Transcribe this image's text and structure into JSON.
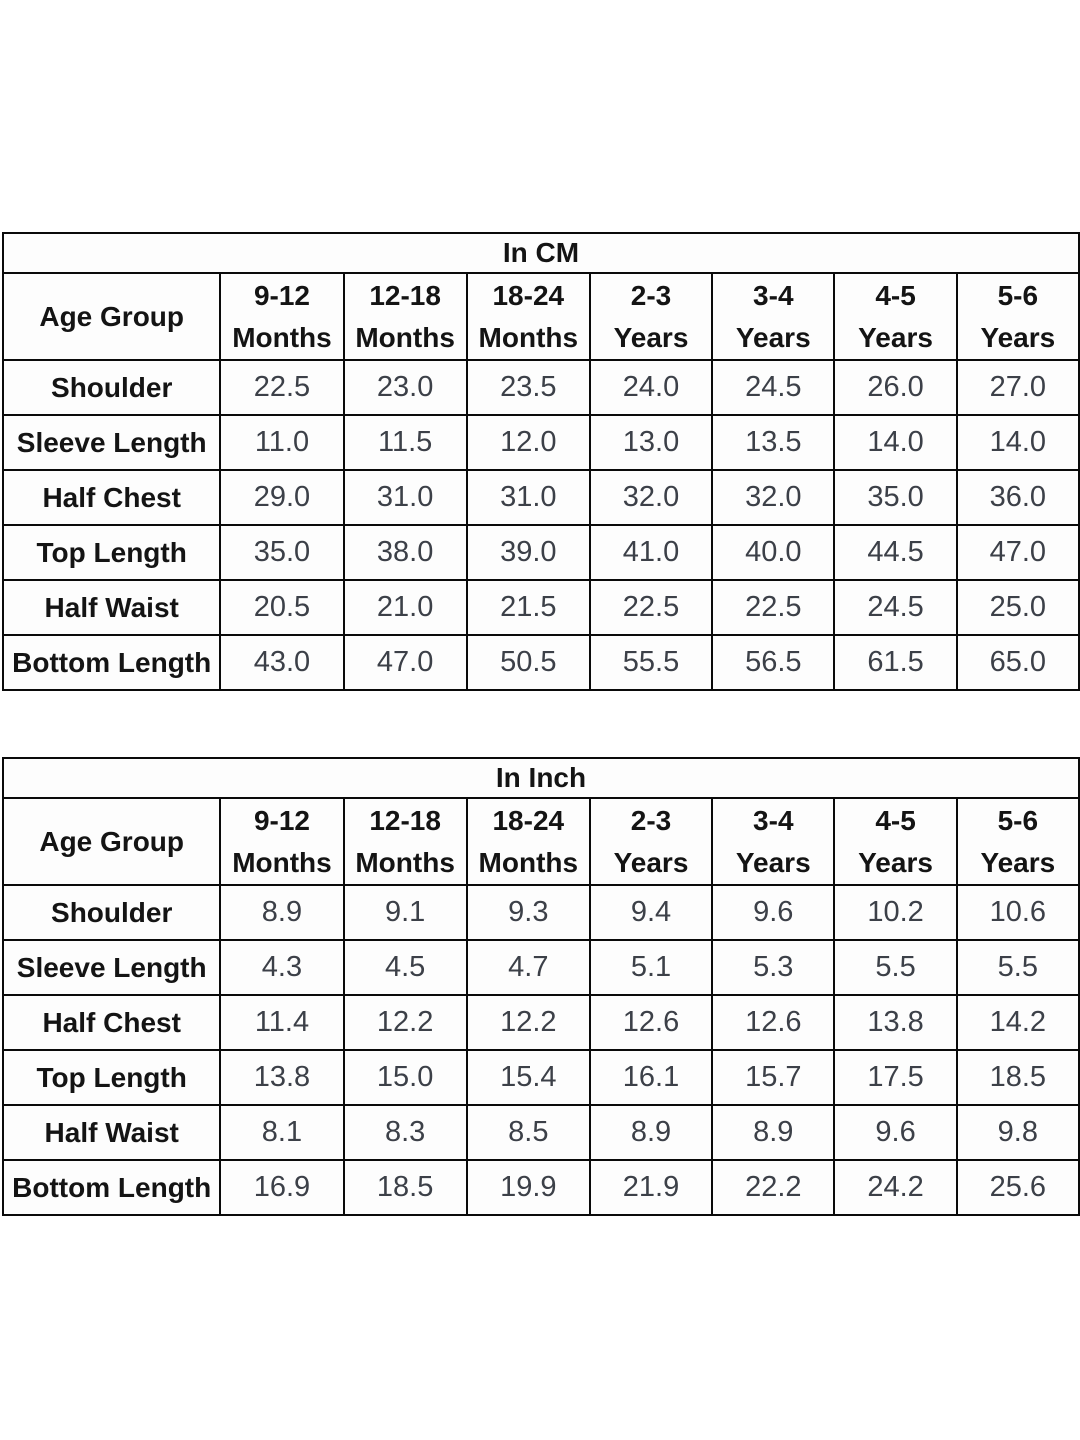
{
  "page": {
    "background_color": "#ffffff",
    "border_color": "#0a0a0a",
    "label_color": "#141414",
    "value_color": "#3c4048",
    "cell_background": "#fdfdfd"
  },
  "chart_data": [
    {
      "type": "table",
      "title": "In CM",
      "corner_header": "Age Group",
      "columns": [
        "9-12 Months",
        "12-18 Months",
        "18-24 Months",
        "2-3 Years",
        "3-4 Years",
        "4-5 Years",
        "5-6 Years"
      ],
      "rows": [
        {
          "label": "Shoulder",
          "values": [
            "22.5",
            "23.0",
            "23.5",
            "24.0",
            "24.5",
            "26.0",
            "27.0"
          ]
        },
        {
          "label": "Sleeve Length",
          "values": [
            "11.0",
            "11.5",
            "12.0",
            "13.0",
            "13.5",
            "14.0",
            "14.0"
          ]
        },
        {
          "label": "Half Chest",
          "values": [
            "29.0",
            "31.0",
            "31.0",
            "32.0",
            "32.0",
            "35.0",
            "36.0"
          ]
        },
        {
          "label": "Top Length",
          "values": [
            "35.0",
            "38.0",
            "39.0",
            "41.0",
            "40.0",
            "44.5",
            "47.0"
          ]
        },
        {
          "label": "Half Waist",
          "values": [
            "20.5",
            "21.0",
            "21.5",
            "22.5",
            "22.5",
            "24.5",
            "25.0"
          ]
        },
        {
          "label": "Bottom Length",
          "values": [
            "43.0",
            "47.0",
            "50.5",
            "55.5",
            "56.5",
            "61.5",
            "65.0"
          ]
        }
      ]
    },
    {
      "type": "table",
      "title": "In Inch",
      "corner_header": "Age Group",
      "columns": [
        "9-12 Months",
        "12-18 Months",
        "18-24 Months",
        "2-3 Years",
        "3-4 Years",
        "4-5 Years",
        "5-6 Years"
      ],
      "rows": [
        {
          "label": "Shoulder",
          "values": [
            "8.9",
            "9.1",
            "9.3",
            "9.4",
            "9.6",
            "10.2",
            "10.6"
          ]
        },
        {
          "label": "Sleeve Length",
          "values": [
            "4.3",
            "4.5",
            "4.7",
            "5.1",
            "5.3",
            "5.5",
            "5.5"
          ]
        },
        {
          "label": "Half Chest",
          "values": [
            "11.4",
            "12.2",
            "12.2",
            "12.6",
            "12.6",
            "13.8",
            "14.2"
          ]
        },
        {
          "label": "Top Length",
          "values": [
            "13.8",
            "15.0",
            "15.4",
            "16.1",
            "15.7",
            "17.5",
            "18.5"
          ]
        },
        {
          "label": "Half Waist",
          "values": [
            "8.1",
            "8.3",
            "8.5",
            "8.9",
            "8.9",
            "9.6",
            "9.8"
          ]
        },
        {
          "label": "Bottom Length",
          "values": [
            "16.9",
            "18.5",
            "19.9",
            "21.9",
            "22.2",
            "24.2",
            "25.6"
          ]
        }
      ]
    }
  ],
  "layout": {
    "first_col_width": 218,
    "value_col_width": 124
  }
}
